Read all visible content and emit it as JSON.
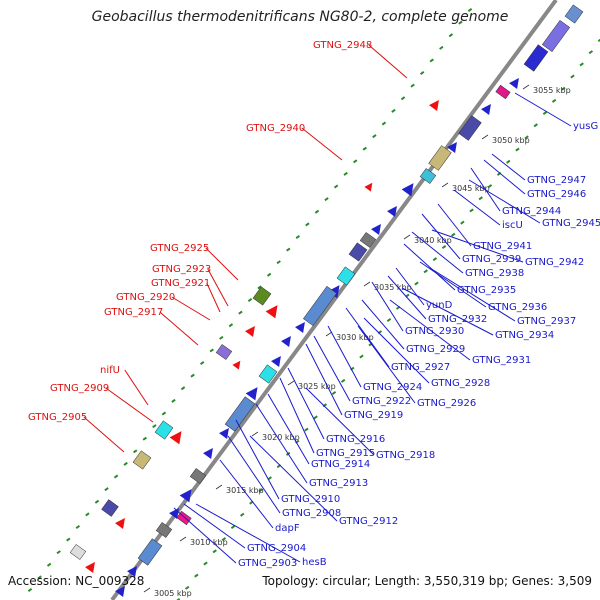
{
  "title": "Geobacillus thermodenitrificans NG80-2, complete genome",
  "accession": "Accession: NC_009328",
  "summary": "Topology: circular; Length: 3,550,319 bp; Genes: 3,509",
  "colors": {
    "backbone": "#888888",
    "forward_label": "#dd1111",
    "reverse_label": "#1a1acc",
    "gc_dots": "#2a8a2a"
  },
  "ticks": [
    {
      "label": "3005 kbp"
    },
    {
      "label": "3010 kbp"
    },
    {
      "label": "3015 kbp"
    },
    {
      "label": "3020 kbp"
    },
    {
      "label": "3025 kbp"
    },
    {
      "label": "3030 kbp"
    },
    {
      "label": "3035 kbp"
    },
    {
      "label": "3040 kbp"
    },
    {
      "label": "3045 kbp"
    },
    {
      "label": "3050 kbp"
    },
    {
      "label": "3055 kbp"
    }
  ],
  "forward_labels": [
    {
      "text": "GTNG_2948"
    },
    {
      "text": "GTNG_2940"
    },
    {
      "text": "GTNG_2925"
    },
    {
      "text": "GTNG_2923"
    },
    {
      "text": "GTNG_2921"
    },
    {
      "text": "GTNG_2920"
    },
    {
      "text": "GTNG_2917"
    },
    {
      "text": "nifU"
    },
    {
      "text": "GTNG_2909"
    },
    {
      "text": "GTNG_2905"
    }
  ],
  "reverse_labels": [
    {
      "text": "yusG"
    },
    {
      "text": "GTNG_2947"
    },
    {
      "text": "GTNG_2946"
    },
    {
      "text": "GTNG_2944"
    },
    {
      "text": "GTNG_2945"
    },
    {
      "text": "iscU"
    },
    {
      "text": "GTNG_2941"
    },
    {
      "text": "GTNG_2939"
    },
    {
      "text": "GTNG_2942"
    },
    {
      "text": "GTNG_2938"
    },
    {
      "text": "GTNG_2935"
    },
    {
      "text": "yunD"
    },
    {
      "text": "GTNG_2936"
    },
    {
      "text": "GTNG_2932"
    },
    {
      "text": "GTNG_2937"
    },
    {
      "text": "GTNG_2930"
    },
    {
      "text": "GTNG_2934"
    },
    {
      "text": "GTNG_2929"
    },
    {
      "text": "GTNG_2931"
    },
    {
      "text": "GTNG_2927"
    },
    {
      "text": "GTNG_2928"
    },
    {
      "text": "GTNG_2924"
    },
    {
      "text": "GTNG_2922"
    },
    {
      "text": "GTNG_2926"
    },
    {
      "text": "GTNG_2919"
    },
    {
      "text": "GTNG_2916"
    },
    {
      "text": "GTNG_2915"
    },
    {
      "text": "GTNG_2918"
    },
    {
      "text": "GTNG_2914"
    },
    {
      "text": "GTNG_2913"
    },
    {
      "text": "GTNG_2910"
    },
    {
      "text": "GTNG_2908"
    },
    {
      "text": "GTNG_2912"
    },
    {
      "text": "dapF"
    },
    {
      "text": "GTNG_2904"
    },
    {
      "text": "GTNG_2903"
    },
    {
      "text": "hesB"
    }
  ]
}
